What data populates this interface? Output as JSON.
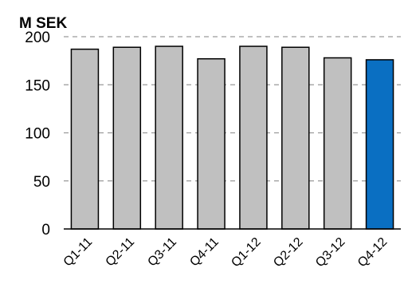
{
  "chart_data": {
    "type": "bar",
    "ylabel": "M SEK",
    "categories": [
      "Q1-11",
      "Q2-11",
      "Q3-11",
      "Q4-11",
      "Q1-12",
      "Q2-12",
      "Q3-12",
      "Q4-12"
    ],
    "values": [
      187,
      189,
      190,
      177,
      190,
      189,
      178,
      176
    ],
    "ylim": [
      0,
      200
    ],
    "yticks": [
      "0",
      "50",
      "100",
      "150",
      "200"
    ],
    "grid": "dashed-horizontal",
    "colors": {
      "bar": "#c0c0c0",
      "highlight": "#0a6fc2",
      "outline": "#000000",
      "grid": "#9a9a9a"
    },
    "highlight_index": 7
  }
}
